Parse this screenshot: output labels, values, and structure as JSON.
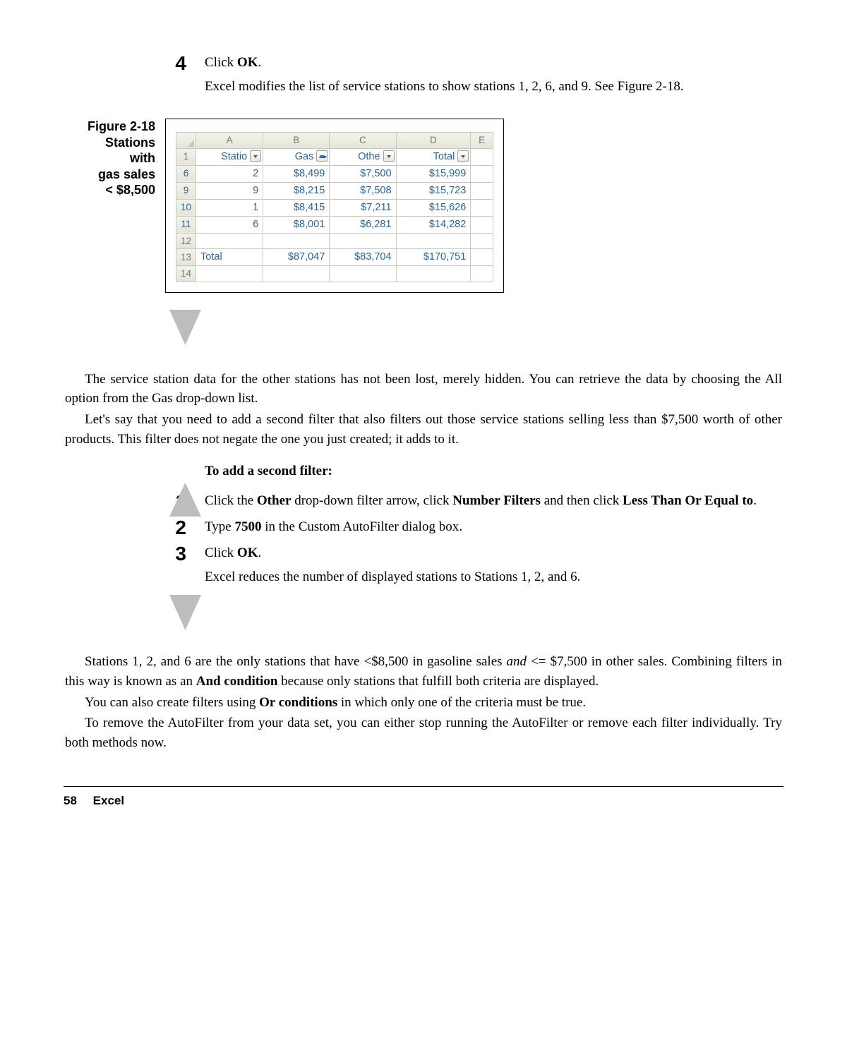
{
  "step4": {
    "num": "4",
    "text_pre": "Click ",
    "text_bold": "OK",
    "text_post": ".",
    "sub": "Excel modifies the list of service stations to show stations 1, 2, 6, and 9. See Figure 2-18."
  },
  "figure": {
    "caption_l1": "Figure 2-18",
    "caption_l2": "Stations",
    "caption_l3": "with",
    "caption_l4": "gas sales",
    "caption_l5": "< $8,500",
    "col_letters": [
      "A",
      "B",
      "C",
      "D",
      "E"
    ],
    "header_row_num": "1",
    "headers": [
      "Statio",
      "Gas",
      "Othe",
      "Total"
    ],
    "filter_states": [
      "normal",
      "filtered",
      "normal",
      "normal"
    ],
    "rows": [
      {
        "n": "6",
        "cells": [
          "2",
          "$8,499",
          "$7,500",
          "$15,999",
          ""
        ]
      },
      {
        "n": "9",
        "cells": [
          "9",
          "$8,215",
          "$7,508",
          "$15,723",
          ""
        ]
      },
      {
        "n": "10",
        "cells": [
          "1",
          "$8,415",
          "$7,211",
          "$15,626",
          ""
        ]
      },
      {
        "n": "11",
        "cells": [
          "6",
          "$8,001",
          "$6,281",
          "$14,282",
          ""
        ]
      },
      {
        "n": "12",
        "cells": [
          "",
          "",
          "",
          "",
          ""
        ]
      },
      {
        "n": "13",
        "cells": [
          "Total",
          "$87,047",
          "$83,704",
          "$170,751",
          ""
        ]
      },
      {
        "n": "14",
        "cells": [
          "",
          "",
          "",
          "",
          ""
        ]
      }
    ]
  },
  "para1": "The service station data for the other stations has not been lost, merely hidden. You can retrieve the data by choosing the All option from the Gas drop-down list.",
  "para2": "Let's say that you need to add a second filter that also filters out those service stations selling less than $7,500 worth of other products. This filter does not negate the one you just created; it adds to it.",
  "subhead": "To add a second filter:",
  "s1": {
    "n": "1",
    "pre": "Click the ",
    "b1": "Other",
    "mid": " drop-down filter arrow, click ",
    "b2": "Number Filters",
    "mid2": " and then click ",
    "b3": "Less Than Or Equal to",
    "post": "."
  },
  "s2": {
    "n": "2",
    "pre": "Type ",
    "b1": "7500",
    "post": " in the Custom AutoFilter dialog box."
  },
  "s3": {
    "n": "3",
    "pre": "Click ",
    "b1": "OK",
    "post": ".",
    "sub": "Excel reduces the number of displayed stations to Stations 1, 2, and 6."
  },
  "para3_a": "Stations 1, 2, and 6 are the only stations that have <$8,500 in gasoline sales ",
  "para3_iand": "and",
  "para3_b": " <= $7,500 in other sales. Combining filters in this way is known as an ",
  "para3_bold": "And condition",
  "para3_c": " because only stations that fulfill both criteria are displayed.",
  "para4_a": "You can also create filters using ",
  "para4_bold": "Or conditions",
  "para4_b": " in which only one of the criteria must be true.",
  "para5": "To remove the AutoFilter from your data set, you can either stop running the AutoFilter or remove each filter individually. Try both methods now.",
  "footer": {
    "page": "58",
    "label": "Excel"
  }
}
